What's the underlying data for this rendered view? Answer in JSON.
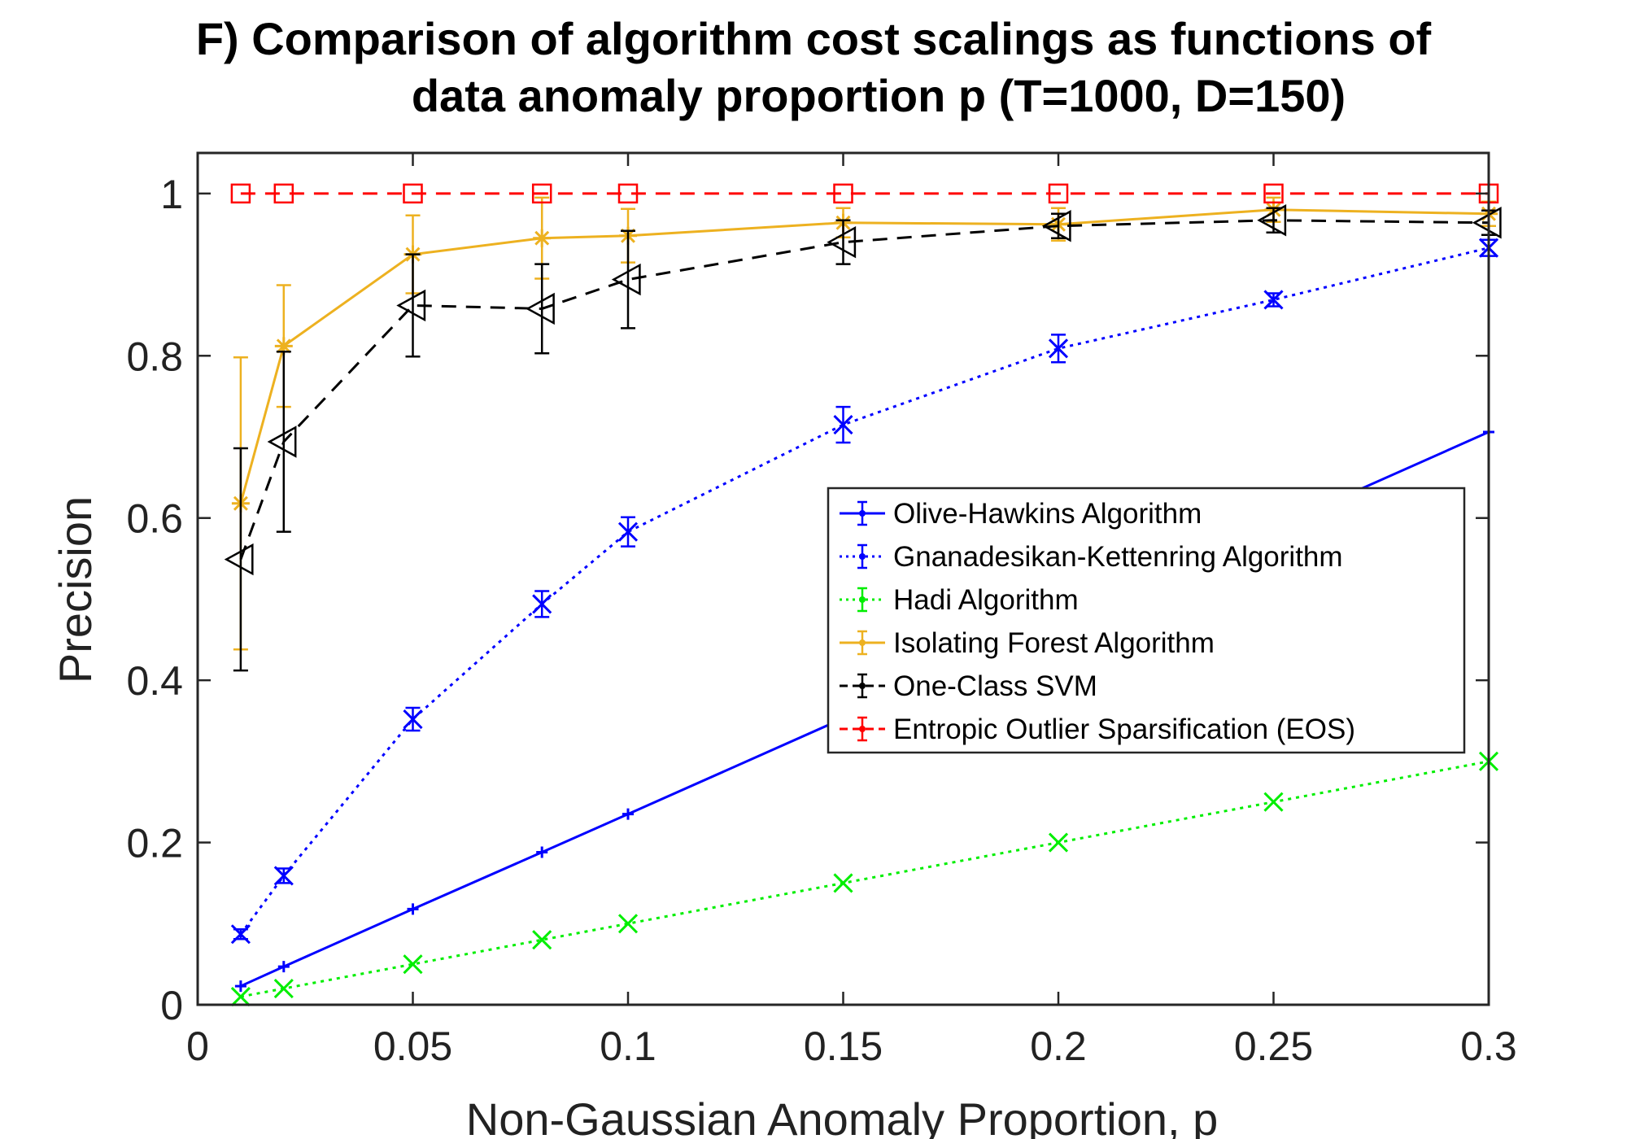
{
  "chart_data": {
    "type": "line",
    "title_line1": "F) Comparison of algorithm cost scalings as functions of",
    "title_line2": "data anomaly proportion p (T=1000, D=150)",
    "xlabel": "Non-Gaussian Anomaly Proportion, p",
    "ylabel": "Precision",
    "xlim": [
      0,
      0.3
    ],
    "ylim": [
      0,
      1.05
    ],
    "xticks": [
      0,
      0.05,
      0.1,
      0.15,
      0.2,
      0.25,
      0.3
    ],
    "xtick_labels": [
      "0",
      "0.05",
      "0.1",
      "0.15",
      "0.2",
      "0.25",
      "0.3"
    ],
    "yticks": [
      0,
      0.2,
      0.4,
      0.6,
      0.8,
      1
    ],
    "ytick_labels": [
      "0",
      "0.2",
      "0.4",
      "0.6",
      "0.8",
      "1"
    ],
    "grid": false,
    "legend_position": "right-center",
    "series": [
      {
        "name": "Olive-Hawkins Algorithm",
        "color": "#0000ff",
        "line_style": "solid",
        "marker": "plus",
        "x": [
          0.01,
          0.02,
          0.05,
          0.08,
          0.1,
          0.15,
          0.2,
          0.25,
          0.3
        ],
        "y": [
          0.023,
          0.047,
          0.118,
          0.188,
          0.235,
          0.353,
          0.471,
          0.588,
          0.706
        ],
        "err": [
          0.001,
          0.001,
          0.001,
          0.001,
          0.001,
          0.001,
          0.001,
          0.001,
          0.001
        ]
      },
      {
        "name": "Gnanadesikan-Kettenring Algorithm",
        "color": "#0000ff",
        "line_style": "dotted",
        "marker": "x",
        "x": [
          0.01,
          0.02,
          0.05,
          0.08,
          0.1,
          0.15,
          0.2,
          0.25,
          0.3
        ],
        "y": [
          0.087,
          0.159,
          0.352,
          0.494,
          0.583,
          0.715,
          0.809,
          0.869,
          0.933
        ],
        "err": [
          0.006,
          0.009,
          0.014,
          0.016,
          0.018,
          0.022,
          0.017,
          0.008,
          0.01
        ]
      },
      {
        "name": "Hadi Algorithm",
        "color": "#00ee00",
        "line_style": "dotted",
        "marker": "x",
        "x": [
          0.01,
          0.02,
          0.05,
          0.08,
          0.1,
          0.15,
          0.2,
          0.25,
          0.3
        ],
        "y": [
          0.01,
          0.02,
          0.05,
          0.08,
          0.1,
          0.15,
          0.2,
          0.25,
          0.3
        ],
        "err": [
          0.001,
          0.001,
          0.001,
          0.001,
          0.001,
          0.001,
          0.001,
          0.001,
          0.001
        ]
      },
      {
        "name": "Isolating Forest Algorithm",
        "color": "#edb120",
        "line_style": "solid",
        "marker": "star",
        "x": [
          0.01,
          0.02,
          0.05,
          0.08,
          0.1,
          0.15,
          0.2,
          0.25,
          0.3
        ],
        "y": [
          0.618,
          0.812,
          0.925,
          0.945,
          0.948,
          0.964,
          0.962,
          0.98,
          0.975
        ],
        "err": [
          0.18,
          0.075,
          0.048,
          0.05,
          0.033,
          0.018,
          0.02,
          0.015,
          0.015
        ]
      },
      {
        "name": "One-Class SVM",
        "color": "#000000",
        "line_style": "dashed",
        "marker": "triangle-left",
        "x": [
          0.01,
          0.02,
          0.05,
          0.08,
          0.1,
          0.15,
          0.2,
          0.25,
          0.3
        ],
        "y": [
          0.549,
          0.694,
          0.862,
          0.858,
          0.894,
          0.94,
          0.96,
          0.967,
          0.964
        ],
        "err": [
          0.137,
          0.111,
          0.063,
          0.055,
          0.06,
          0.027,
          0.015,
          0.015,
          0.015
        ]
      },
      {
        "name": "Entropic Outlier Sparsification (EOS)",
        "color": "#ff0000",
        "line_style": "dashed",
        "marker": "square",
        "x": [
          0.01,
          0.02,
          0.05,
          0.08,
          0.1,
          0.15,
          0.2,
          0.25,
          0.3
        ],
        "y": [
          1,
          1,
          1,
          1,
          1,
          1,
          1,
          1,
          1
        ],
        "err": [
          0,
          0,
          0,
          0,
          0,
          0,
          0,
          0,
          0
        ]
      }
    ]
  }
}
